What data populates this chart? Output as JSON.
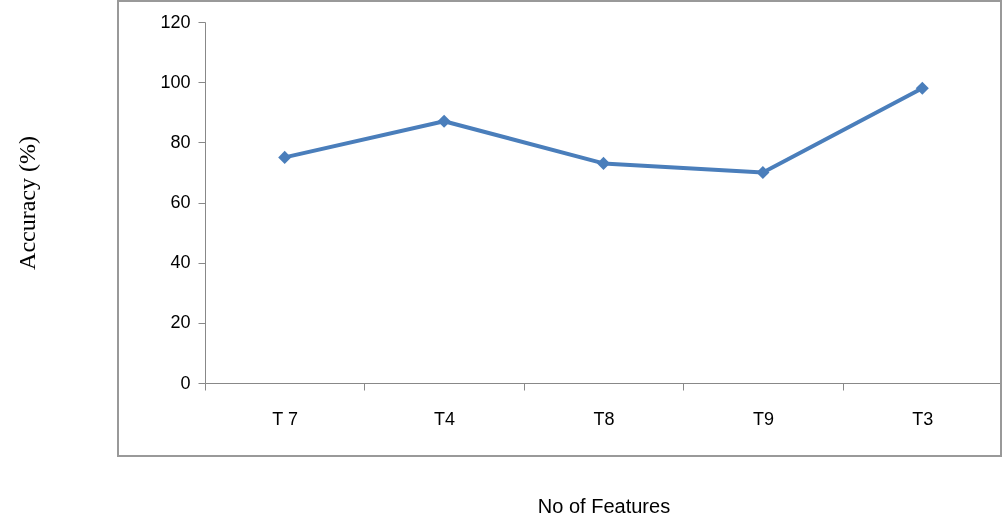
{
  "chart_data": {
    "type": "line",
    "xlabel": "No of Features",
    "ylabel": "Accuracy (%)",
    "categories": [
      "T 7",
      "T4",
      "T8",
      "T9",
      "T3"
    ],
    "series": [
      {
        "color": "#4a7ebb",
        "values": [
          75,
          87,
          73,
          70,
          98
        ]
      }
    ],
    "ylim": [
      0,
      120
    ],
    "yticks": [
      0,
      20,
      40,
      60,
      80,
      100,
      120
    ],
    "marker": "diamond",
    "line_style": "solid"
  }
}
